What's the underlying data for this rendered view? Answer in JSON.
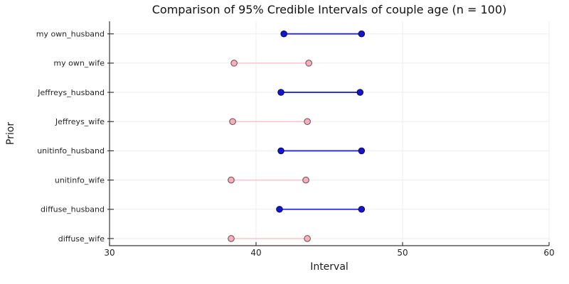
{
  "chart_data": {
    "type": "scatter",
    "subtype": "dumbbell-interval",
    "title": "Comparison of 95% Credible Intervals of couple age (n = 100)",
    "xlabel": "Interval",
    "ylabel": "Prior",
    "xlim": [
      30,
      60
    ],
    "xticks": [
      30,
      40,
      50,
      60
    ],
    "grid": true,
    "legend": "none",
    "categories": [
      "my own_husband",
      "my own_wife",
      "Jeffreys_husband",
      "Jeffreys_wife",
      "unitinfo_husband",
      "unitinfo_wife",
      "diffuse_husband",
      "diffuse_wife"
    ],
    "rows": [
      {
        "label": "my own_husband",
        "group": "husband",
        "lower": 41.9,
        "upper": 47.2
      },
      {
        "label": "my own_wife",
        "group": "wife",
        "lower": 38.5,
        "upper": 43.6
      },
      {
        "label": "Jeffreys_husband",
        "group": "husband",
        "lower": 41.7,
        "upper": 47.1
      },
      {
        "label": "Jeffreys_wife",
        "group": "wife",
        "lower": 38.4,
        "upper": 43.5
      },
      {
        "label": "unitinfo_husband",
        "group": "husband",
        "lower": 41.7,
        "upper": 47.2
      },
      {
        "label": "unitinfo_wife",
        "group": "wife",
        "lower": 38.3,
        "upper": 43.4
      },
      {
        "label": "diffuse_husband",
        "group": "husband",
        "lower": 41.6,
        "upper": 47.2
      },
      {
        "label": "diffuse_wife",
        "group": "wife",
        "lower": 38.3,
        "upper": 43.5
      }
    ],
    "styles": {
      "husband": {
        "line": "#2424e8",
        "line_width": 1.8,
        "marker": "#1414d2",
        "marker_stroke": "#00002a"
      },
      "wife": {
        "line": "#fbc5ce",
        "line_width": 1.5,
        "marker": "#f5afbd",
        "marker_stroke": "#4a3038"
      }
    },
    "axis_color": "#383838",
    "grid_color": "#ededed",
    "text_color": "#262626",
    "background": "#ffffff"
  }
}
